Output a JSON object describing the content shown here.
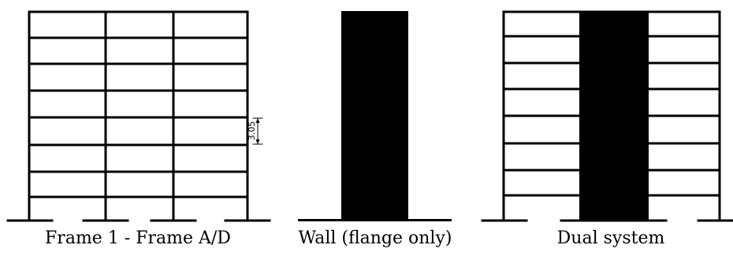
{
  "panels": [
    {
      "caption": "Frame 1 - Frame A/D",
      "storeys": 8
    },
    {
      "caption": "Wall (flange only)"
    },
    {
      "caption": "Dual system",
      "storeys": 8
    }
  ],
  "dimension_label": "3.05",
  "colors": {
    "stroke": "#000000",
    "fill": "#000000",
    "background": "#ffffff"
  }
}
